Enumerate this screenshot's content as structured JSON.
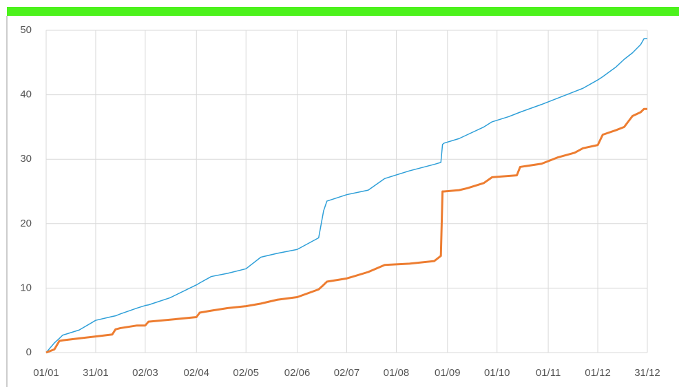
{
  "chart_data": {
    "type": "line",
    "x": [
      0,
      5,
      8,
      10,
      20,
      30,
      40,
      42,
      45,
      55,
      60,
      62,
      75,
      91,
      93,
      100,
      110,
      121,
      130,
      140,
      152,
      165,
      168,
      170,
      182,
      195,
      205,
      220,
      235,
      239,
      240,
      241,
      250,
      255,
      265,
      270,
      280,
      285,
      287,
      300,
      310,
      320,
      325,
      334,
      337,
      345,
      350,
      355,
      360,
      362,
      364
    ],
    "series": [
      {
        "color": "#2e9fd8",
        "values": [
          0,
          1.5,
          2.2,
          2.7,
          3.5,
          5,
          5.6,
          5.7,
          6,
          6.9,
          7.3,
          7.4,
          8.5,
          10.5,
          10.8,
          11.8,
          12.3,
          13,
          14.8,
          15.4,
          16,
          17.8,
          22,
          23.5,
          24.5,
          25.2,
          27,
          28.2,
          29.2,
          29.5,
          32.3,
          32.5,
          33.2,
          33.8,
          35,
          35.8,
          36.6,
          37.1,
          37.3,
          38.5,
          39.5,
          40.5,
          41,
          42.3,
          42.8,
          44.3,
          45.5,
          46.5,
          47.8,
          48.7,
          48.7
        ]
      },
      {
        "color": "#ed7d31",
        "values": [
          0,
          0.5,
          1.8,
          1.9,
          2.2,
          2.5,
          2.8,
          3.6,
          3.8,
          4.2,
          4.2,
          4.8,
          5.1,
          5.5,
          6.2,
          6.5,
          6.9,
          7.2,
          7.6,
          8.2,
          8.6,
          9.8,
          10.5,
          11,
          11.5,
          12.5,
          13.6,
          13.8,
          14.2,
          15,
          25,
          25,
          25.2,
          25.5,
          26.3,
          27.2,
          27.4,
          27.5,
          28.8,
          29.3,
          30.3,
          31,
          31.7,
          32.2,
          33.8,
          34.5,
          35,
          36.7,
          37.3,
          37.8,
          37.8
        ]
      }
    ],
    "xlim": [
      0,
      364
    ],
    "xticks": [
      {
        "value": 0,
        "label": "01/01"
      },
      {
        "value": 30,
        "label": "31/01"
      },
      {
        "value": 60,
        "label": "02/03"
      },
      {
        "value": 91,
        "label": "02/04"
      },
      {
        "value": 121,
        "label": "02/05"
      },
      {
        "value": 152,
        "label": "02/06"
      },
      {
        "value": 182,
        "label": "02/07"
      },
      {
        "value": 212,
        "label": "01/08"
      },
      {
        "value": 243,
        "label": "01/09"
      },
      {
        "value": 273,
        "label": "01/10"
      },
      {
        "value": 304,
        "label": "01/11"
      },
      {
        "value": 334,
        "label": "01/12"
      },
      {
        "value": 364,
        "label": "31/12"
      }
    ],
    "ylim": [
      0,
      50
    ],
    "yticks": [
      0,
      10,
      20,
      30,
      40,
      50
    ],
    "grid": true
  }
}
